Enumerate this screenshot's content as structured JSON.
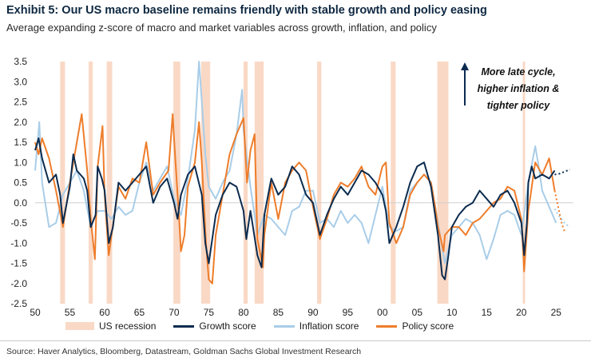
{
  "title": "Exhibit 5: Our US macro baseline remains friendly with stable growth and policy easing",
  "subtitle": "Average expanding z-score of macro and market variables across growth, inflation, and policy",
  "source": "Source: Haver Analytics, Bloomberg, Datastream, Goldman Sachs Global Investment Research",
  "annotation": [
    "More late cycle,",
    "higher inflation &",
    "tighter policy"
  ],
  "colors": {
    "recession": "#f9d9c6",
    "growth": "#0b2b4f",
    "inflation": "#a9cde8",
    "policy": "#ee7d2b",
    "grid": "#d9d9d9"
  },
  "chart_data": {
    "type": "line",
    "title": "Exhibit 5: Our US macro baseline remains friendly with stable growth and policy easing",
    "xlabel": "",
    "ylabel": "",
    "xlim": [
      1950,
      2027.5
    ],
    "ylim": [
      -2.5,
      3.5
    ],
    "y_ticks": [
      3.5,
      3.0,
      2.5,
      2.0,
      1.5,
      1.0,
      0.5,
      0.0,
      -0.5,
      -1.0,
      -1.5,
      -2.0,
      -2.5
    ],
    "y_tick_labels": [
      "3.5",
      "3.0",
      "2.5",
      "2.0",
      "1.5",
      "1.0",
      "0.5",
      "0.0",
      "-0.5",
      "-1.0",
      "-1.5",
      "-2.0",
      "-2.5"
    ],
    "x_ticks": [
      1950,
      1955,
      1960,
      1965,
      1970,
      1975,
      1980,
      1985,
      1990,
      1995,
      2000,
      2005,
      2010,
      2015,
      2020,
      2025
    ],
    "x_tick_labels": [
      "50",
      "55",
      "60",
      "65",
      "70",
      "75",
      "80",
      "85",
      "90",
      "95",
      "00",
      "05",
      "10",
      "15",
      "20",
      "25"
    ],
    "legend": [
      "US recession",
      "Growth score",
      "Inflation score",
      "Policy score"
    ],
    "recessions": [
      [
        1953.6,
        1954.3
      ],
      [
        1957.7,
        1958.3
      ],
      [
        1960.3,
        1961.1
      ],
      [
        1969.9,
        1970.9
      ],
      [
        1973.9,
        1975.2
      ],
      [
        1980.0,
        1980.6
      ],
      [
        1981.6,
        1982.9
      ],
      [
        1990.6,
        1991.2
      ],
      [
        2001.2,
        2001.9
      ],
      [
        2007.9,
        2009.5
      ],
      [
        2020.2,
        2020.4
      ]
    ],
    "series": [
      {
        "name": "Growth score",
        "x": [
          1950,
          1950.5,
          1951,
          1952,
          1953,
          1953.6,
          1954,
          1955,
          1955.5,
          1956,
          1957,
          1957.5,
          1958,
          1958.7,
          1959,
          1959.6,
          1960,
          1960.6,
          1961.2,
          1962,
          1963,
          1964,
          1965,
          1966,
          1967,
          1968,
          1969,
          1970,
          1970.5,
          1971,
          1972,
          1973,
          1974,
          1974.5,
          1975,
          1976,
          1977,
          1978,
          1979,
          1980,
          1980.4,
          1981,
          1982,
          1982.6,
          1983,
          1984,
          1985,
          1986,
          1987,
          1988,
          1989,
          1990,
          1991,
          1992,
          1993,
          1994,
          1995,
          1996,
          1997,
          1998,
          1999,
          2000,
          2000.5,
          2001,
          2002,
          2003,
          2004,
          2005,
          2006,
          2007,
          2008,
          2008.6,
          2009,
          2009.5,
          2010,
          2011,
          2012,
          2013,
          2014,
          2015,
          2016,
          2017,
          2018,
          2019,
          2020,
          2020.4,
          2020.8,
          2021,
          2021.5,
          2022,
          2023,
          2024,
          2024.8
        ],
        "y": [
          1.3,
          1.6,
          1.1,
          0.5,
          0.7,
          0.2,
          -0.5,
          0.4,
          1.2,
          0.8,
          0.6,
          0.3,
          -0.6,
          -0.3,
          0.9,
          0.6,
          0.3,
          -1.0,
          -0.6,
          0.5,
          0.3,
          0.5,
          0.7,
          0.9,
          0.0,
          0.4,
          0.6,
          0.0,
          -0.4,
          0.2,
          0.7,
          0.9,
          0.2,
          -1.0,
          -1.5,
          -0.3,
          0.2,
          0.5,
          0.4,
          -0.2,
          -0.9,
          -0.2,
          -1.3,
          -1.6,
          -0.3,
          0.6,
          0.2,
          0.4,
          0.9,
          0.7,
          0.2,
          0.0,
          -0.8,
          -0.3,
          0.1,
          0.4,
          0.2,
          0.5,
          0.8,
          0.7,
          0.5,
          0.2,
          -0.2,
          -1.0,
          -0.6,
          -0.1,
          0.5,
          0.9,
          1.0,
          0.4,
          -0.8,
          -1.8,
          -1.9,
          -1.3,
          -0.6,
          -0.3,
          -0.1,
          0.0,
          0.3,
          0.1,
          -0.1,
          0.2,
          0.3,
          0.0,
          -0.5,
          -1.3,
          -0.5,
          0.5,
          0.9,
          0.6,
          0.7,
          0.6,
          0.8
        ]
      },
      {
        "name": "Inflation score",
        "x": [
          1950,
          1950.6,
          1951,
          1952,
          1953,
          1954,
          1955,
          1956,
          1957,
          1958,
          1959,
          1960,
          1961,
          1962,
          1963,
          1964,
          1965,
          1966,
          1967,
          1968,
          1969,
          1970,
          1971,
          1972,
          1973,
          1973.6,
          1974,
          1974.5,
          1975,
          1976,
          1977,
          1978,
          1979,
          1979.8,
          1980,
          1981,
          1982,
          1983,
          1984,
          1985,
          1986,
          1987,
          1988,
          1989,
          1990,
          1991,
          1992,
          1993,
          1994,
          1995,
          1996,
          1997,
          1998,
          1999,
          2000,
          2001,
          2002,
          2003,
          2004,
          2005,
          2006,
          2007,
          2008,
          2009,
          2010,
          2011,
          2012,
          2013,
          2014,
          2015,
          2016,
          2017,
          2018,
          2019,
          2020,
          2021,
          2022,
          2022.5,
          2023,
          2024,
          2025
        ],
        "y": [
          0.8,
          2.0,
          0.5,
          -0.6,
          -0.5,
          0.2,
          0.5,
          0.8,
          0.3,
          -0.6,
          -0.2,
          -0.2,
          -0.4,
          -0.1,
          -0.3,
          -0.2,
          0.5,
          1.0,
          0.3,
          0.6,
          0.9,
          0.1,
          -0.3,
          0.6,
          1.8,
          3.5,
          2.5,
          1.2,
          0.4,
          0.1,
          0.5,
          0.8,
          1.7,
          2.8,
          1.8,
          0.4,
          -0.8,
          -0.3,
          -0.4,
          -0.6,
          -0.8,
          -0.2,
          -0.1,
          0.3,
          0.3,
          -0.5,
          -0.4,
          -0.6,
          -0.2,
          -0.5,
          -0.3,
          -0.5,
          -1.0,
          -0.3,
          0.4,
          -0.6,
          -0.7,
          -0.6,
          0.3,
          0.5,
          0.7,
          0.5,
          -0.5,
          -1.5,
          -0.8,
          -0.6,
          -0.4,
          -0.5,
          -0.8,
          -1.4,
          -0.9,
          -0.3,
          -0.2,
          -0.3,
          -0.8,
          0.5,
          1.4,
          0.9,
          0.3,
          -0.1,
          -0.5
        ]
      },
      {
        "name": "Policy score",
        "x": [
          1950,
          1950.5,
          1951,
          1952,
          1953,
          1954,
          1955,
          1956,
          1956.7,
          1957.5,
          1958,
          1958.6,
          1959,
          1959.7,
          1960,
          1960.6,
          1961,
          1962,
          1963,
          1964,
          1965,
          1966,
          1967,
          1968,
          1969.2,
          1969.8,
          1970,
          1970.8,
          1971,
          1971.5,
          1972,
          1973,
          1973.6,
          1974,
          1974.6,
          1975,
          1975.5,
          1976,
          1977,
          1978,
          1979,
          1980,
          1980.5,
          1981,
          1981.6,
          1982,
          1982.8,
          1983,
          1984,
          1985,
          1986,
          1987,
          1988,
          1989,
          1990,
          1991,
          1992,
          1993,
          1994,
          1995,
          1996,
          1997,
          1998,
          1999,
          2000,
          2000.5,
          2001,
          2002,
          2003,
          2004,
          2005,
          2006,
          2007,
          2007.6,
          2008,
          2008.8,
          2009,
          2010,
          2011,
          2012,
          2013,
          2014,
          2015,
          2016,
          2017,
          2018,
          2019,
          2020,
          2020.4,
          2021,
          2022,
          2023,
          2024,
          2024.8
        ],
        "y": [
          1.5,
          1.2,
          1.6,
          1.1,
          0.3,
          -0.6,
          0.5,
          1.5,
          2.2,
          0.8,
          -0.4,
          -1.4,
          0.9,
          1.9,
          0.2,
          -1.3,
          -0.8,
          0.4,
          0.1,
          0.6,
          0.5,
          1.5,
          0.2,
          0.5,
          0.8,
          2.2,
          1.6,
          -0.6,
          -1.2,
          -0.8,
          0.4,
          1.0,
          2.0,
          1.0,
          -1.0,
          -1.9,
          -2.0,
          -0.8,
          0.2,
          1.2,
          1.7,
          2.1,
          0.5,
          1.3,
          1.7,
          -0.9,
          -1.6,
          -0.8,
          0.5,
          -0.4,
          0.5,
          0.8,
          1.0,
          0.8,
          -0.1,
          -0.9,
          -0.4,
          0.2,
          0.5,
          0.4,
          0.6,
          0.9,
          0.4,
          0.2,
          0.9,
          1.0,
          -0.5,
          -1.0,
          -0.6,
          0.2,
          0.5,
          0.7,
          0.5,
          -0.1,
          -0.6,
          -1.2,
          -0.8,
          -0.6,
          -0.6,
          -0.8,
          -0.5,
          -0.4,
          -0.2,
          0.0,
          0.1,
          0.4,
          0.3,
          -0.4,
          -1.7,
          -0.2,
          1.0,
          0.7,
          1.1,
          0.3
        ]
      }
    ],
    "forecasts": [
      {
        "name": "Growth score",
        "x": [
          2024.8,
          2025.5,
          2026.3,
          2027
        ],
        "y": [
          0.7,
          0.72,
          0.78,
          0.82
        ]
      },
      {
        "name": "Inflation score",
        "x": [
          2024.8,
          2025.5,
          2026.3,
          2027
        ],
        "y": [
          -0.15,
          -0.35,
          -0.52,
          -0.6
        ]
      },
      {
        "name": "Policy score",
        "x": [
          2024.8,
          2025.3,
          2025.8,
          2026.3
        ],
        "y": [
          0.3,
          -0.1,
          -0.5,
          -0.75
        ]
      }
    ]
  }
}
